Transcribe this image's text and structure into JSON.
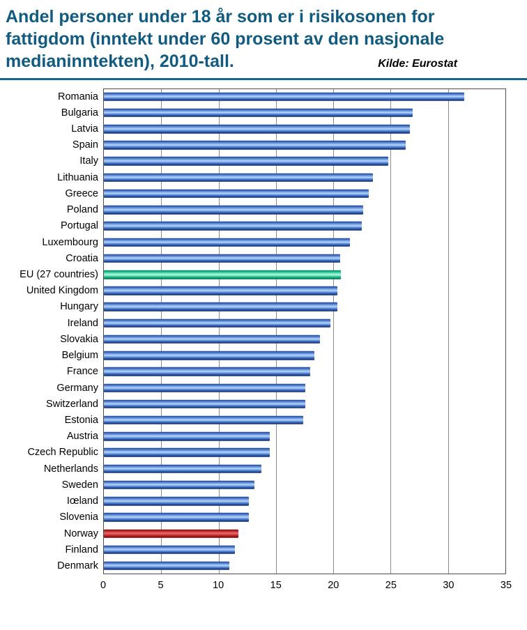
{
  "header": {
    "title_lines": [
      "Andel personer under 18 år som er i risikosonen for",
      "fattigdom (inntekt under 60 prosent av den nasjonale",
      "medianinntekten), 2010-tall."
    ],
    "source": "Kilde: Eurostat"
  },
  "chart_data": {
    "type": "bar",
    "orientation": "horizontal",
    "title": "Andel personer under 18 år som er i risikosonen for fattigdom (inntekt under 60 prosent av den nasjonale medianinntekten), 2010-tall.",
    "source": "Kilde: Eurostat",
    "xlabel": "",
    "ylabel": "",
    "xlim": [
      0,
      35
    ],
    "xticks": [
      0,
      5,
      10,
      15,
      20,
      25,
      30,
      35
    ],
    "grid": true,
    "legend": "none",
    "colors": {
      "bar_blue": "#4f7fd0",
      "bar_green": "#1fc491",
      "bar_red": "#c02a2a",
      "title_text": "#115b80",
      "divider": "#15688c",
      "gridline": "#8c8c8c"
    },
    "items": [
      {
        "label": "Romania",
        "value": 31.3,
        "color": "blue"
      },
      {
        "label": "Bulgaria",
        "value": 26.8,
        "color": "blue"
      },
      {
        "label": "Latvia",
        "value": 26.6,
        "color": "blue"
      },
      {
        "label": "Spain",
        "value": 26.2,
        "color": "blue"
      },
      {
        "label": "Italy",
        "value": 24.7,
        "color": "blue"
      },
      {
        "label": "Lithuania",
        "value": 23.4,
        "color": "blue"
      },
      {
        "label": "Greece",
        "value": 23.0,
        "color": "blue"
      },
      {
        "label": "Poland",
        "value": 22.5,
        "color": "blue"
      },
      {
        "label": "Portugal",
        "value": 22.4,
        "color": "blue"
      },
      {
        "label": "Luxembourg",
        "value": 21.4,
        "color": "blue"
      },
      {
        "label": "Croatia",
        "value": 20.5,
        "color": "blue"
      },
      {
        "label": "EU (27 countries)",
        "value": 20.6,
        "color": "green"
      },
      {
        "label": "United Kingdom",
        "value": 20.3,
        "color": "blue"
      },
      {
        "label": "Hungary",
        "value": 20.3,
        "color": "blue"
      },
      {
        "label": "Ireland",
        "value": 19.7,
        "color": "blue"
      },
      {
        "label": "Slovakia",
        "value": 18.8,
        "color": "blue"
      },
      {
        "label": "Belgium",
        "value": 18.3,
        "color": "blue"
      },
      {
        "label": "France",
        "value": 17.9,
        "color": "blue"
      },
      {
        "label": "Germany",
        "value": 17.5,
        "color": "blue"
      },
      {
        "label": "Switzerland",
        "value": 17.5,
        "color": "blue"
      },
      {
        "label": "Estonia",
        "value": 17.3,
        "color": "blue"
      },
      {
        "label": "Austria",
        "value": 14.4,
        "color": "blue"
      },
      {
        "label": "Czech Republic",
        "value": 14.4,
        "color": "blue"
      },
      {
        "label": "Netherlands",
        "value": 13.7,
        "color": "blue"
      },
      {
        "label": "Sweden",
        "value": 13.1,
        "color": "blue"
      },
      {
        "label": "Iœland",
        "value": 12.6,
        "color": "blue"
      },
      {
        "label": "Slovenia",
        "value": 12.6,
        "color": "blue"
      },
      {
        "label": "Norway",
        "value": 11.7,
        "color": "red"
      },
      {
        "label": "Finland",
        "value": 11.4,
        "color": "blue"
      },
      {
        "label": "Denmark",
        "value": 10.9,
        "color": "blue"
      }
    ]
  }
}
